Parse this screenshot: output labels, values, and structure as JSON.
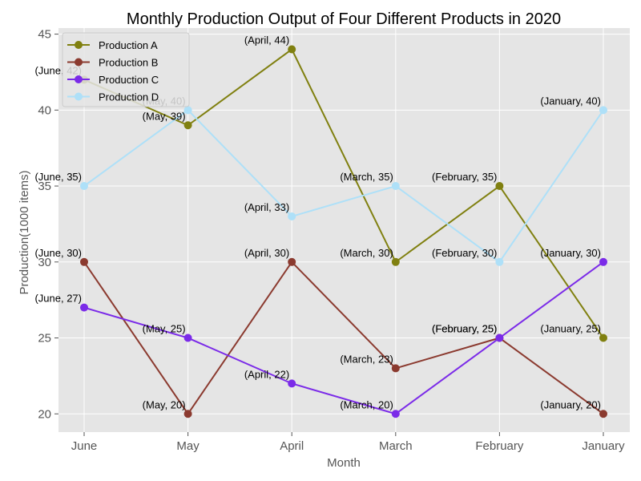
{
  "chart_data": {
    "type": "line",
    "title": "Monthly Production Output of Four Different Products in 2020",
    "xlabel": "Month",
    "ylabel": "Production(1000 items)",
    "categories": [
      "June",
      "May",
      "April",
      "March",
      "February",
      "January"
    ],
    "ylim": [
      18.8,
      45.4
    ],
    "yticks": [
      20,
      25,
      30,
      35,
      40,
      45
    ],
    "grid": true,
    "legend_position": "top-left",
    "series": [
      {
        "name": "Production A",
        "color": "#808010",
        "values": [
          42,
          39,
          44,
          30,
          35,
          25
        ],
        "labels": [
          "(June, 42)",
          "(May, 39)",
          "(April, 44)",
          "(March, 30)",
          "(February, 35)",
          "(January, 25)"
        ]
      },
      {
        "name": "Production B",
        "color": "#8b3a2f",
        "values": [
          30,
          20,
          30,
          23,
          25,
          20
        ],
        "labels": [
          "(June, 30)",
          "(May, 20)",
          "(April, 30)",
          "(March, 23)",
          "(February, 25)",
          "(January, 20)"
        ]
      },
      {
        "name": "Production C",
        "color": "#7b2be8",
        "values": [
          27,
          25,
          22,
          20,
          25,
          30
        ],
        "labels": [
          "(June, 27)",
          "(May, 25)",
          "(April, 22)",
          "(March, 20)",
          "(February, 25)",
          "(January, 30)"
        ]
      },
      {
        "name": "Production D",
        "color": "#aee0f8",
        "values": [
          35,
          40,
          33,
          35,
          30,
          40
        ],
        "labels": [
          "(June, 35)",
          "(May, 40)",
          "(April, 33)",
          "(March, 35)",
          "(February, 30)",
          "(January, 40)"
        ]
      }
    ]
  }
}
